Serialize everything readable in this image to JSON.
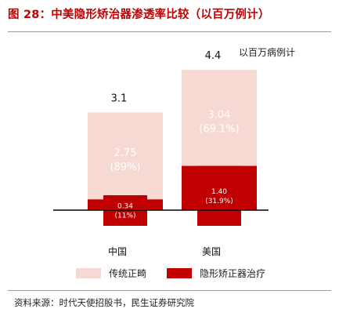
{
  "header": {
    "title": "图 28：中美隐形矫治器渗透率比较（以百万例计）"
  },
  "source": "资料来源：时代天使招股书，民生证券研究院",
  "colors": {
    "title": "#c00000",
    "traditional": "#f7d9d4",
    "invisible": "#c00000",
    "axis": "#000000"
  },
  "chart_data": {
    "type": "bar",
    "stacked": true,
    "unit_label": "以百万病例计",
    "categories": [
      "中国",
      "美国"
    ],
    "totals": [
      "3.1",
      "4.4"
    ],
    "series": [
      {
        "name": "隐形矫正器治疗",
        "values": [
          0.34,
          1.4
        ],
        "labels": [
          "0.34",
          "1.40"
        ],
        "pct_labels": [
          "(11%)",
          "(31.9%)"
        ]
      },
      {
        "name": "传统正畸",
        "values": [
          2.75,
          3.04
        ],
        "labels": [
          "2.75",
          "3.04"
        ],
        "pct_labels": [
          "(89%)",
          "(69.1%)"
        ]
      }
    ],
    "legend": [
      "传统正畸",
      "隐形矫正器治疗"
    ],
    "legend_position": "bottom",
    "grid": false
  }
}
